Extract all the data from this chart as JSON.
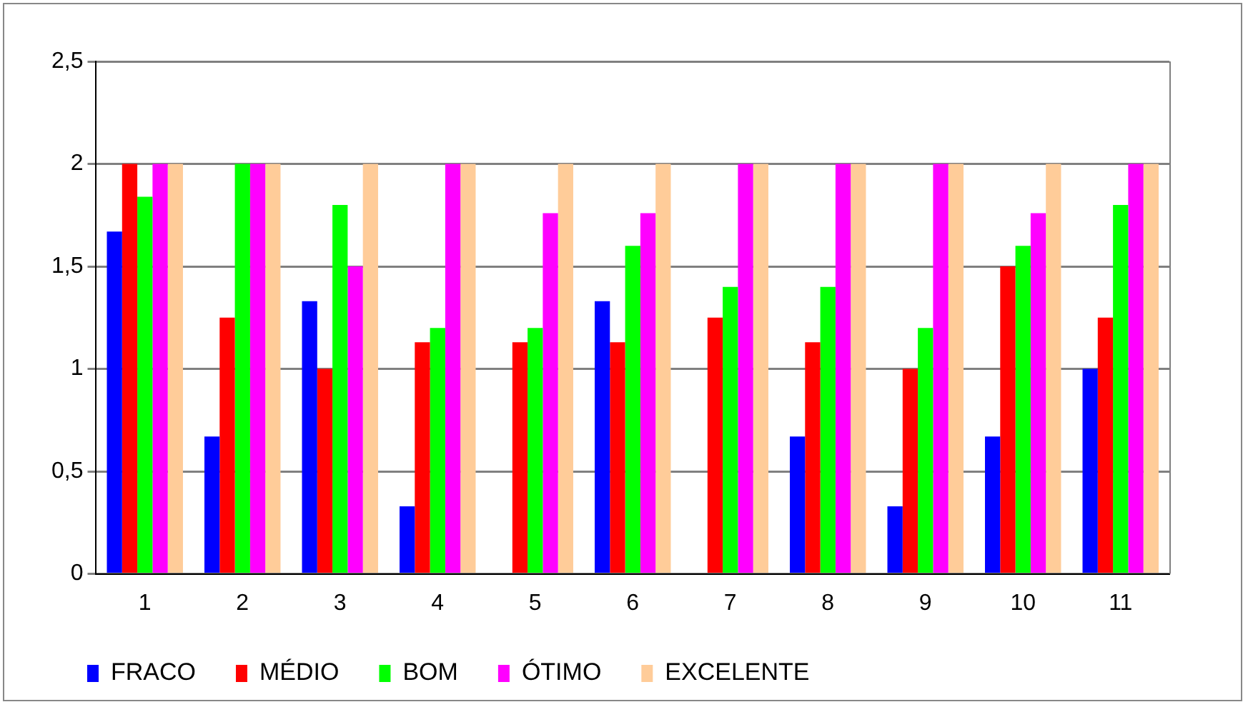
{
  "chart_data": {
    "type": "bar",
    "categories": [
      "1",
      "2",
      "3",
      "4",
      "5",
      "6",
      "7",
      "8",
      "9",
      "10",
      "11"
    ],
    "series": [
      {
        "name": "FRACO",
        "color": "#0000ff",
        "values": [
          1.67,
          0.67,
          1.33,
          0.33,
          0,
          1.33,
          0,
          0.67,
          0.33,
          0.67,
          1
        ]
      },
      {
        "name": "MÉDIO",
        "color": "#ff0000",
        "values": [
          2,
          1.25,
          1,
          1.13,
          1.13,
          1.13,
          1.25,
          1.13,
          1,
          1.5,
          1.25
        ]
      },
      {
        "name": "BOM",
        "color": "#00ff00",
        "values": [
          1.84,
          2,
          1.8,
          1.2,
          1.2,
          1.6,
          1.4,
          1.4,
          1.2,
          1.6,
          1.8
        ]
      },
      {
        "name": "ÓTIMO",
        "color": "#ff00ff",
        "values": [
          2,
          2,
          1.5,
          2,
          1.76,
          1.76,
          2,
          2,
          2,
          1.76,
          2
        ]
      },
      {
        "name": "EXCELENTE",
        "color": "#ffcc99",
        "values": [
          2,
          2,
          2,
          2,
          2,
          2,
          2,
          2,
          2,
          2,
          2
        ]
      }
    ],
    "ylim": [
      0,
      2.5
    ],
    "yticks": [
      {
        "value": 0,
        "label": "0"
      },
      {
        "value": 0.5,
        "label": "0,5"
      },
      {
        "value": 1,
        "label": "1"
      },
      {
        "value": 1.5,
        "label": "1,5"
      },
      {
        "value": 2,
        "label": "2"
      },
      {
        "value": 2.5,
        "label": "2,5"
      }
    ],
    "grid": "y",
    "legend": "bottom"
  }
}
